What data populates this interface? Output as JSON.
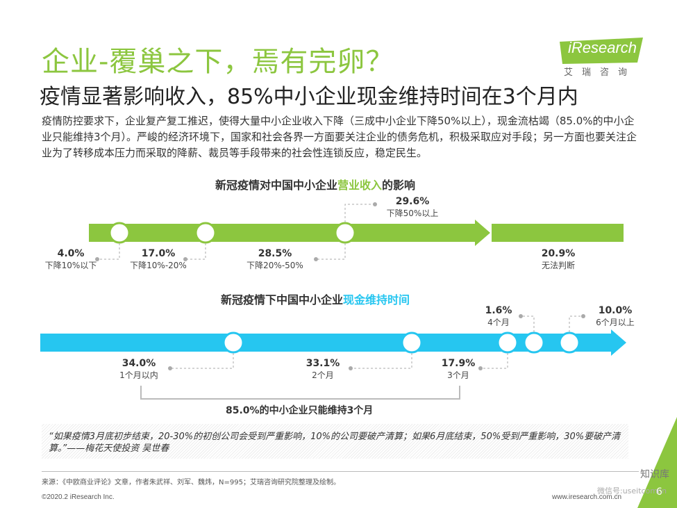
{
  "header": {
    "title": "企业-覆巢之下，焉有完卵？",
    "subtitle": "疫情显著影响收入，85%中小企业现金维持时间在3个月内",
    "logo_text": "iResearch",
    "logo_cn": "艾瑞咨询"
  },
  "intro": "疫情防控要求下，企业复产复工推迟，使得大量中小企业收入下降（三成中小企业下降50%以上），现金流枯竭（85.0%的中小企业只能维持3个月）。严峻的经济环境下，国家和社会各界一方面要关注企业的债务危机，积极采取应对手段；另一方面也要关注企业为了转移成本压力而采取的降薪、裁员等手段带来的社会性连锁反应，稳定民生。",
  "revenue": {
    "title_pre": "新冠疫情对中国中小企业",
    "title_hl": "营业收入",
    "title_post": "的影响",
    "items": [
      {
        "pct": "4.0%",
        "label": "下降10%以下"
      },
      {
        "pct": "17.0%",
        "label": "下降10%-20%"
      },
      {
        "pct": "28.5%",
        "label": "下降20%-50%"
      },
      {
        "pct": "29.6%",
        "label": "下降50%以上"
      },
      {
        "pct": "20.9%",
        "label": "无法判断"
      }
    ]
  },
  "cash": {
    "title_pre": "新冠疫情下中国中小企业",
    "title_hl": "现金维持时间",
    "items": [
      {
        "pct": "34.0%",
        "label": "1个月以内"
      },
      {
        "pct": "33.1%",
        "label": "2个月"
      },
      {
        "pct": "17.9%",
        "label": "3个月"
      },
      {
        "pct": "1.6%",
        "label": "4个月"
      },
      {
        "pct": "10.0%",
        "label": "6个月以上"
      }
    ],
    "summary": "85.0%的中小企业只能维持3个月"
  },
  "quote": "“如果疫情3月底初步结束，20-30%的初创公司会受到严重影响，10%的公司要破产清算；如果6月底结束，50%受到严重影响，30%要破产清算。”——梅花天使投资 吴世春",
  "footer": {
    "source": "来源：《中欧商业评论》文章，作者朱武祥、刘军、魏炜，N=995；艾瑞咨询研究院整理及绘制。",
    "copyright": "©2020.2 iResearch Inc.",
    "site": "www.iresearch.com.cn",
    "page": "6",
    "watermark": "知识库",
    "watermark2": "微信号:useitcomcn"
  },
  "colors": {
    "green": "#8cc63f",
    "cyan": "#26c6f0",
    "text": "#333333"
  }
}
